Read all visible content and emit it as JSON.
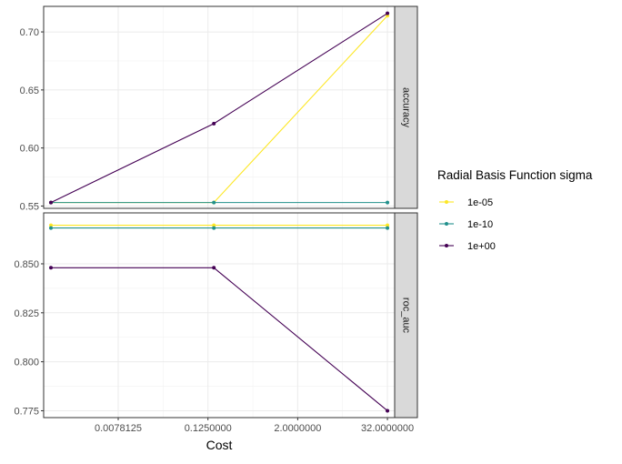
{
  "chart_data": {
    "type": "line",
    "facet_by": "metric",
    "facets": [
      {
        "label": "accuracy",
        "ylim": [
          0.548,
          0.722
        ],
        "yticks": [
          0.55,
          0.6,
          0.65,
          0.7
        ],
        "yticklabels": [
          "0.55",
          "0.60",
          "0.65",
          "0.70"
        ],
        "series": [
          {
            "name": "1e-05",
            "values": [
              0.553,
              0.553,
              0.714
            ]
          },
          {
            "name": "1e-10",
            "values": [
              0.553,
              0.553,
              0.553
            ]
          },
          {
            "name": "1e+00",
            "values": [
              0.553,
              0.621,
              0.716
            ]
          }
        ]
      },
      {
        "label": "roc_auc",
        "ylim": [
          0.7715,
          0.876
        ],
        "yticks": [
          0.775,
          0.8,
          0.825,
          0.85
        ],
        "yticklabels": [
          "0.775",
          "0.800",
          "0.825",
          "0.850"
        ],
        "series": [
          {
            "name": "1e-05",
            "values": [
              0.8697,
              0.8697,
              0.8697
            ]
          },
          {
            "name": "1e-10",
            "values": [
              0.8683,
              0.8683,
              0.8683
            ]
          },
          {
            "name": "1e+00",
            "values": [
              0.848,
              0.848,
              0.775
            ]
          }
        ]
      }
    ],
    "x": [
      0.00097656,
      0.15,
      32
    ],
    "x_scale": "log2",
    "xlim": [
      0.00078,
      40
    ],
    "xticks": [
      0.0078125,
      0.125,
      2,
      32
    ],
    "xticklabels": [
      "0.0078125",
      "0.1250000",
      "2.0000000",
      "32.0000000"
    ],
    "xlabel": "Cost",
    "ylabel": "",
    "legend": {
      "title": "Radial Basis Function sigma",
      "position": "right",
      "entries": [
        "1e-05",
        "1e-10",
        "1e+00"
      ]
    },
    "series_colors": {
      "1e-05": "#FDE725",
      "1e-10": "#21908C",
      "1e+00": "#440154"
    },
    "grid": true,
    "theme": "bw"
  }
}
